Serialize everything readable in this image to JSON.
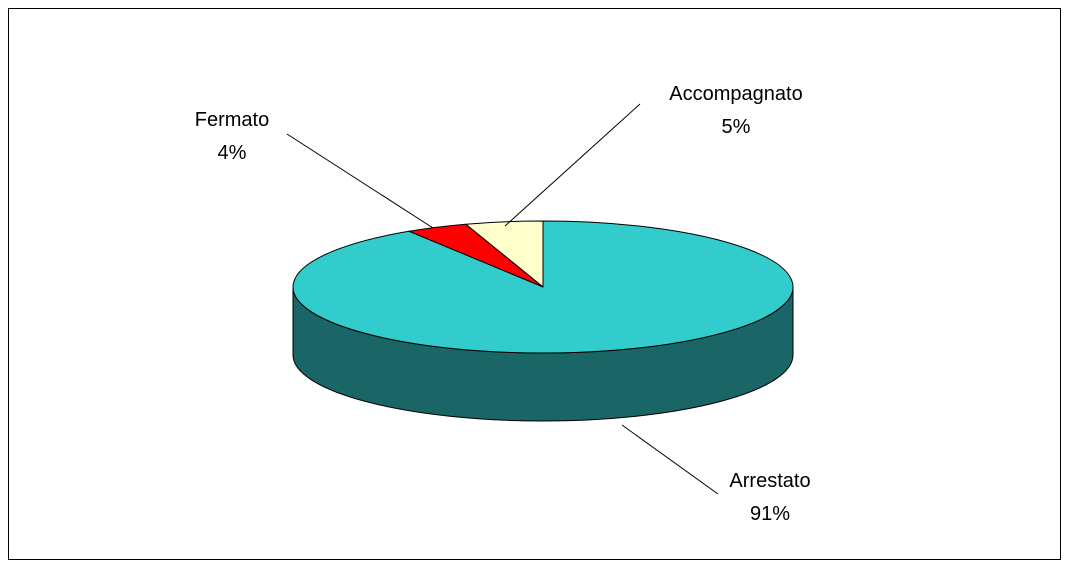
{
  "chart_data": {
    "type": "pie",
    "title": "",
    "categories": [
      "Arrestato",
      "Fermato",
      "Accompagnato"
    ],
    "values": [
      91,
      4,
      5
    ],
    "value_labels": [
      "91%",
      "4%",
      "5%"
    ],
    "colors": {
      "Arrestato": "#33CCCC",
      "Fermato": "#FF0000",
      "Accompagnato": "#FFFFCC"
    },
    "side_colors": {
      "Arrestato": "#1A6666",
      "Fermato": "#800000",
      "Accompagnato": "#808066"
    },
    "style": "3d",
    "legend": "none"
  }
}
